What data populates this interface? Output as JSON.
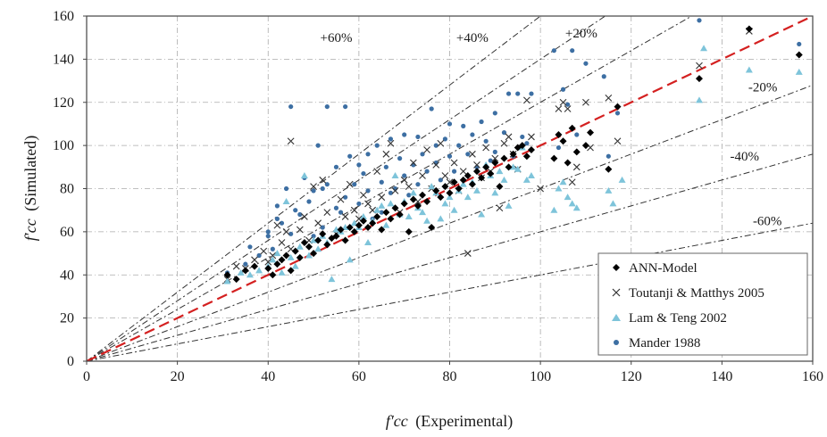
{
  "chart_data": {
    "type": "scatter",
    "xlabel": {
      "symbol": "f′cc",
      "text": "(Experimental)"
    },
    "ylabel": {
      "symbol": "f′cc",
      "text": "(Simulated)"
    },
    "xlim": [
      0,
      160
    ],
    "ylim": [
      0,
      160
    ],
    "xticks": [
      "0",
      "20",
      "40",
      "60",
      "80",
      "100",
      "120",
      "140",
      "160"
    ],
    "yticks": [
      "0",
      "20",
      "40",
      "60",
      "80",
      "100",
      "120",
      "140",
      "160"
    ],
    "grid": true,
    "legend_position": "bottom-right",
    "reference_lines": [
      {
        "label": "+60%",
        "slope": 1.6,
        "label_at": [
          55,
          148
        ]
      },
      {
        "label": "+40%",
        "slope": 1.4,
        "label_at": [
          85,
          148
        ]
      },
      {
        "label": "+20%",
        "slope": 1.2,
        "label_at": [
          109,
          150
        ]
      },
      {
        "label": "-20%",
        "slope": 0.8,
        "label_at": [
          149,
          125
        ]
      },
      {
        "label": "-40%",
        "slope": 0.6,
        "label_at": [
          145,
          93
        ]
      },
      {
        "label": "-60%",
        "slope": 0.4,
        "label_at": [
          150,
          63
        ]
      }
    ],
    "equality_line": {
      "slope": 1.0,
      "color": "#d42020"
    },
    "series": [
      {
        "name": "Mander 1988",
        "marker": "circle",
        "color": "#3d6fa3",
        "points": [
          [
            31,
            41
          ],
          [
            35,
            45
          ],
          [
            36,
            53
          ],
          [
            38,
            49
          ],
          [
            40,
            58
          ],
          [
            40,
            60
          ],
          [
            41,
            52
          ],
          [
            42,
            72
          ],
          [
            42,
            66
          ],
          [
            43,
            64
          ],
          [
            44,
            80
          ],
          [
            45,
            59
          ],
          [
            45,
            118
          ],
          [
            46,
            70
          ],
          [
            47,
            68
          ],
          [
            48,
            85
          ],
          [
            49,
            74
          ],
          [
            50,
            58
          ],
          [
            50,
            79
          ],
          [
            51,
            100
          ],
          [
            52,
            80
          ],
          [
            52,
            62
          ],
          [
            53,
            82
          ],
          [
            53,
            118
          ],
          [
            55,
            90
          ],
          [
            55,
            71
          ],
          [
            56,
            69
          ],
          [
            57,
            76
          ],
          [
            57,
            118
          ],
          [
            58,
            95
          ],
          [
            59,
            82
          ],
          [
            60,
            73
          ],
          [
            60,
            91
          ],
          [
            61,
            87
          ],
          [
            62,
            79
          ],
          [
            62,
            96
          ],
          [
            63,
            66
          ],
          [
            64,
            100
          ],
          [
            65,
            83
          ],
          [
            65,
            69
          ],
          [
            66,
            90
          ],
          [
            67,
            103
          ],
          [
            67,
            78
          ],
          [
            68,
            80
          ],
          [
            69,
            94
          ],
          [
            70,
            86
          ],
          [
            70,
            105
          ],
          [
            71,
            77
          ],
          [
            72,
            91
          ],
          [
            73,
            104
          ],
          [
            73,
            82
          ],
          [
            74,
            96
          ],
          [
            75,
            88
          ],
          [
            76,
            117
          ],
          [
            77,
            92
          ],
          [
            77,
            100
          ],
          [
            78,
            84
          ],
          [
            79,
            103
          ],
          [
            80,
            110
          ],
          [
            80,
            95
          ],
          [
            81,
            88
          ],
          [
            82,
            100
          ],
          [
            83,
            109
          ],
          [
            84,
            96
          ],
          [
            85,
            105
          ],
          [
            86,
            90
          ],
          [
            87,
            111
          ],
          [
            88,
            102
          ],
          [
            89,
            93
          ],
          [
            90,
            115
          ],
          [
            90,
            97
          ],
          [
            92,
            106
          ],
          [
            93,
            124
          ],
          [
            94,
            95
          ],
          [
            95,
            124
          ],
          [
            96,
            104
          ],
          [
            97,
            101
          ],
          [
            98,
            124
          ],
          [
            103,
            144
          ],
          [
            104,
            99
          ],
          [
            105,
            126
          ],
          [
            106,
            119
          ],
          [
            107,
            144
          ],
          [
            108,
            105
          ],
          [
            110,
            138
          ],
          [
            114,
            132
          ],
          [
            115,
            95
          ],
          [
            117,
            115
          ],
          [
            135,
            158
          ],
          [
            157,
            147
          ]
        ]
      },
      {
        "name": "Toutanji & Matthys 2005",
        "marker": "cross",
        "color": "#333333",
        "points": [
          [
            31,
            38
          ],
          [
            33,
            44
          ],
          [
            35,
            43
          ],
          [
            37,
            47
          ],
          [
            39,
            51
          ],
          [
            40,
            46
          ],
          [
            41,
            49
          ],
          [
            42,
            63
          ],
          [
            43,
            55
          ],
          [
            44,
            60
          ],
          [
            45,
            102
          ],
          [
            45,
            52
          ],
          [
            47,
            61
          ],
          [
            48,
            67
          ],
          [
            49,
            56
          ],
          [
            50,
            81
          ],
          [
            51,
            64
          ],
          [
            52,
            84
          ],
          [
            53,
            69
          ],
          [
            55,
            59
          ],
          [
            56,
            75
          ],
          [
            57,
            67
          ],
          [
            58,
            82
          ],
          [
            59,
            70
          ],
          [
            60,
            66
          ],
          [
            61,
            77
          ],
          [
            62,
            73
          ],
          [
            63,
            70
          ],
          [
            64,
            88
          ],
          [
            65,
            76
          ],
          [
            66,
            96
          ],
          [
            67,
            101
          ],
          [
            68,
            79
          ],
          [
            69,
            69
          ],
          [
            70,
            84
          ],
          [
            71,
            81
          ],
          [
            72,
            92
          ],
          [
            73,
            74
          ],
          [
            74,
            86
          ],
          [
            75,
            98
          ],
          [
            76,
            80
          ],
          [
            77,
            91
          ],
          [
            78,
            101
          ],
          [
            79,
            86
          ],
          [
            80,
            83
          ],
          [
            81,
            92
          ],
          [
            82,
            79
          ],
          [
            83,
            88
          ],
          [
            84,
            50
          ],
          [
            85,
            96
          ],
          [
            86,
            91
          ],
          [
            87,
            85
          ],
          [
            88,
            99
          ],
          [
            89,
            88
          ],
          [
            90,
            94
          ],
          [
            91,
            71
          ],
          [
            92,
            101
          ],
          [
            93,
            104
          ],
          [
            94,
            96
          ],
          [
            95,
            89
          ],
          [
            97,
            121
          ],
          [
            98,
            104
          ],
          [
            100,
            80
          ],
          [
            104,
            117
          ],
          [
            105,
            120
          ],
          [
            106,
            117
          ],
          [
            107,
            83
          ],
          [
            108,
            90
          ],
          [
            110,
            120
          ],
          [
            111,
            99
          ],
          [
            115,
            122
          ],
          [
            117,
            102
          ],
          [
            135,
            137
          ],
          [
            146,
            153
          ]
        ]
      },
      {
        "name": "Lam & Teng 2002",
        "marker": "triangle",
        "color": "#7ec4da",
        "points": [
          [
            31,
            37
          ],
          [
            34,
            41
          ],
          [
            36,
            40
          ],
          [
            38,
            42
          ],
          [
            40,
            44
          ],
          [
            41,
            47
          ],
          [
            42,
            50
          ],
          [
            43,
            41
          ],
          [
            44,
            74
          ],
          [
            45,
            48
          ],
          [
            46,
            44
          ],
          [
            47,
            53
          ],
          [
            48,
            86
          ],
          [
            49,
            49
          ],
          [
            50,
            56
          ],
          [
            51,
            52
          ],
          [
            52,
            58
          ],
          [
            53,
            55
          ],
          [
            54,
            38
          ],
          [
            55,
            61
          ],
          [
            56,
            60
          ],
          [
            57,
            62
          ],
          [
            58,
            47
          ],
          [
            59,
            64
          ],
          [
            60,
            62
          ],
          [
            61,
            67
          ],
          [
            62,
            55
          ],
          [
            63,
            65
          ],
          [
            64,
            70
          ],
          [
            65,
            72
          ],
          [
            66,
            63
          ],
          [
            67,
            73
          ],
          [
            68,
            86
          ],
          [
            69,
            68
          ],
          [
            70,
            74
          ],
          [
            71,
            67
          ],
          [
            72,
            78
          ],
          [
            73,
            71
          ],
          [
            74,
            69
          ],
          [
            75,
            65
          ],
          [
            76,
            81
          ],
          [
            77,
            78
          ],
          [
            78,
            66
          ],
          [
            79,
            73
          ],
          [
            80,
            76
          ],
          [
            81,
            70
          ],
          [
            82,
            79
          ],
          [
            83,
            82
          ],
          [
            84,
            76
          ],
          [
            85,
            83
          ],
          [
            86,
            79
          ],
          [
            87,
            68
          ],
          [
            88,
            91
          ],
          [
            89,
            86
          ],
          [
            90,
            78
          ],
          [
            91,
            88
          ],
          [
            92,
            84
          ],
          [
            93,
            72
          ],
          [
            94,
            90
          ],
          [
            95,
            89
          ],
          [
            96,
            99
          ],
          [
            97,
            84
          ],
          [
            98,
            86
          ],
          [
            103,
            70
          ],
          [
            104,
            80
          ],
          [
            105,
            83
          ],
          [
            106,
            76
          ],
          [
            107,
            73
          ],
          [
            108,
            71
          ],
          [
            115,
            79
          ],
          [
            116,
            73
          ],
          [
            118,
            84
          ],
          [
            135,
            121
          ],
          [
            136,
            145
          ],
          [
            146,
            135
          ],
          [
            157,
            134
          ]
        ]
      },
      {
        "name": "ANN-Model",
        "marker": "diamond",
        "color": "#000000",
        "points": [
          [
            31,
            40
          ],
          [
            33,
            38
          ],
          [
            35,
            42
          ],
          [
            37,
            44
          ],
          [
            40,
            43
          ],
          [
            41,
            40
          ],
          [
            42,
            45
          ],
          [
            43,
            47
          ],
          [
            44,
            49
          ],
          [
            45,
            42
          ],
          [
            46,
            51
          ],
          [
            47,
            48
          ],
          [
            48,
            55
          ],
          [
            49,
            53
          ],
          [
            50,
            50
          ],
          [
            51,
            56
          ],
          [
            52,
            59
          ],
          [
            53,
            54
          ],
          [
            54,
            57
          ],
          [
            55,
            58
          ],
          [
            56,
            61
          ],
          [
            57,
            56
          ],
          [
            58,
            62
          ],
          [
            59,
            60
          ],
          [
            60,
            63
          ],
          [
            61,
            65
          ],
          [
            62,
            62
          ],
          [
            63,
            64
          ],
          [
            64,
            67
          ],
          [
            65,
            61
          ],
          [
            66,
            69
          ],
          [
            67,
            66
          ],
          [
            68,
            71
          ],
          [
            69,
            68
          ],
          [
            70,
            73
          ],
          [
            71,
            60
          ],
          [
            72,
            75
          ],
          [
            73,
            72
          ],
          [
            74,
            77
          ],
          [
            75,
            74
          ],
          [
            76,
            62
          ],
          [
            77,
            79
          ],
          [
            78,
            76
          ],
          [
            79,
            81
          ],
          [
            80,
            78
          ],
          [
            81,
            83
          ],
          [
            82,
            80
          ],
          [
            83,
            84
          ],
          [
            84,
            86
          ],
          [
            85,
            82
          ],
          [
            86,
            88
          ],
          [
            87,
            85
          ],
          [
            88,
            90
          ],
          [
            89,
            87
          ],
          [
            90,
            92
          ],
          [
            91,
            81
          ],
          [
            92,
            94
          ],
          [
            93,
            90
          ],
          [
            94,
            96
          ],
          [
            95,
            99
          ],
          [
            96,
            100
          ],
          [
            97,
            95
          ],
          [
            98,
            98
          ],
          [
            103,
            94
          ],
          [
            104,
            105
          ],
          [
            105,
            102
          ],
          [
            106,
            92
          ],
          [
            107,
            108
          ],
          [
            108,
            97
          ],
          [
            110,
            100
          ],
          [
            111,
            106
          ],
          [
            115,
            89
          ],
          [
            117,
            118
          ],
          [
            135,
            131
          ],
          [
            146,
            154
          ],
          [
            157,
            142
          ]
        ]
      }
    ]
  }
}
